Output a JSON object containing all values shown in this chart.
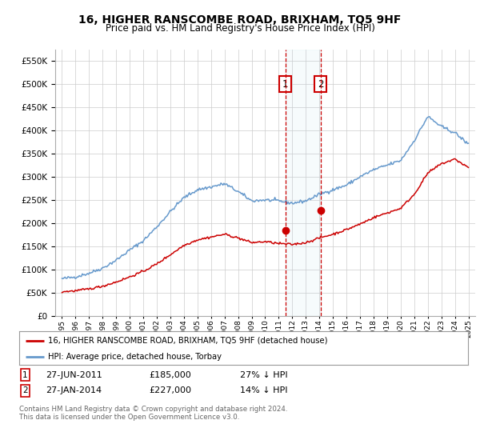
{
  "title": "16, HIGHER RANSCOMBE ROAD, BRIXHAM, TQ5 9HF",
  "subtitle": "Price paid vs. HM Land Registry's House Price Index (HPI)",
  "legend_line1": "16, HIGHER RANSCOMBE ROAD, BRIXHAM, TQ5 9HF (detached house)",
  "legend_line2": "HPI: Average price, detached house, Torbay",
  "footer": "Contains HM Land Registry data © Crown copyright and database right 2024.\nThis data is licensed under the Open Government Licence v3.0.",
  "annotation1": {
    "label": "1",
    "date": "27-JUN-2011",
    "price": "£185,000",
    "hpi": "27% ↓ HPI"
  },
  "annotation2": {
    "label": "2",
    "date": "27-JAN-2014",
    "price": "£227,000",
    "hpi": "14% ↓ HPI"
  },
  "red_color": "#cc0000",
  "blue_color": "#6699cc",
  "point1_x": 2011.49,
  "point1_y": 185000,
  "point2_x": 2014.08,
  "point2_y": 227000,
  "ylim": [
    0,
    575000
  ],
  "xlim_left": 1994.5,
  "xlim_right": 2025.5,
  "yticks": [
    0,
    50000,
    100000,
    150000,
    200000,
    250000,
    300000,
    350000,
    400000,
    450000,
    500000,
    550000
  ],
  "xtick_years": [
    1995,
    1996,
    1997,
    1998,
    1999,
    2000,
    2001,
    2002,
    2003,
    2004,
    2005,
    2006,
    2007,
    2008,
    2009,
    2010,
    2011,
    2012,
    2013,
    2014,
    2015,
    2016,
    2017,
    2018,
    2019,
    2020,
    2021,
    2022,
    2023,
    2024,
    2025
  ],
  "hpi_years": [
    1995,
    1996,
    1997,
    1998,
    1999,
    2000,
    2001,
    2002,
    2003,
    2004,
    2005,
    2006,
    2007,
    2008,
    2009,
    2010,
    2011,
    2012,
    2013,
    2014,
    2015,
    2016,
    2017,
    2018,
    2019,
    2020,
    2021,
    2022,
    2023,
    2024,
    2025
  ],
  "hpi_values": [
    80000,
    84000,
    92000,
    103000,
    120000,
    142000,
    162000,
    192000,
    225000,
    255000,
    272000,
    278000,
    285000,
    268000,
    248000,
    250000,
    248000,
    243000,
    248000,
    262000,
    272000,
    282000,
    300000,
    315000,
    325000,
    335000,
    378000,
    430000,
    408000,
    395000,
    370000
  ],
  "red_values": [
    52000,
    54000,
    58000,
    64000,
    73000,
    84000,
    96000,
    112000,
    132000,
    152000,
    164000,
    170000,
    176000,
    168000,
    158000,
    160000,
    156000,
    154000,
    158000,
    168000,
    176000,
    186000,
    198000,
    212000,
    222000,
    232000,
    262000,
    308000,
    328000,
    338000,
    320000
  ]
}
